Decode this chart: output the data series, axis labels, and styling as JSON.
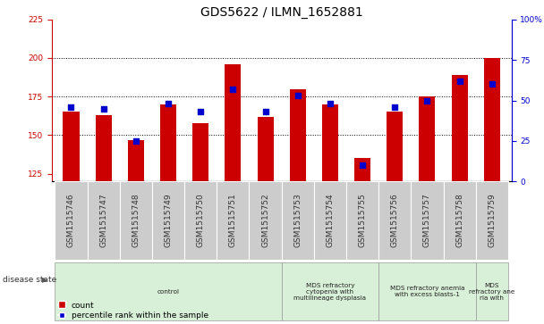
{
  "title": "GDS5622 / ILMN_1652881",
  "samples": [
    "GSM1515746",
    "GSM1515747",
    "GSM1515748",
    "GSM1515749",
    "GSM1515750",
    "GSM1515751",
    "GSM1515752",
    "GSM1515753",
    "GSM1515754",
    "GSM1515755",
    "GSM1515756",
    "GSM1515757",
    "GSM1515758",
    "GSM1515759"
  ],
  "count_values": [
    165,
    163,
    147,
    170,
    158,
    196,
    162,
    180,
    170,
    135,
    165,
    175,
    189,
    200
  ],
  "percentile_values": [
    46,
    45,
    25,
    48,
    43,
    57,
    43,
    53,
    48,
    10,
    46,
    50,
    62,
    60
  ],
  "ylim_left": [
    120,
    225
  ],
  "ylim_right": [
    0,
    100
  ],
  "yticks_left": [
    125,
    150,
    175,
    200,
    225
  ],
  "yticks_right": [
    0,
    25,
    50,
    75,
    100
  ],
  "bar_color": "#cc0000",
  "dot_color": "#0000cc",
  "grid_color": "#000000",
  "background_color": "#ffffff",
  "bar_width": 0.5,
  "disease_groups": [
    {
      "label": "control",
      "start": 0,
      "end": 7,
      "color": "#d8f0d8"
    },
    {
      "label": "MDS refractory\ncytopenia with\nmultilineage dysplasia",
      "start": 7,
      "end": 10,
      "color": "#d8f0d8"
    },
    {
      "label": "MDS refractory anemia\nwith excess blasts-1",
      "start": 10,
      "end": 13,
      "color": "#d8f0d8"
    },
    {
      "label": "MDS\nrefractory ane\nria with",
      "start": 13,
      "end": 14,
      "color": "#d8f0d8"
    }
  ],
  "disease_state_label": "disease state",
  "left_axis_color": "#cc0000",
  "right_axis_color": "#0000cc",
  "legend_count_label": "count",
  "legend_percentile_label": "percentile rank within the sample",
  "tick_label_fontsize": 6.5,
  "title_fontsize": 10,
  "dot_size": 20,
  "sample_box_color": "#cccccc",
  "sample_text_color": "#333333"
}
